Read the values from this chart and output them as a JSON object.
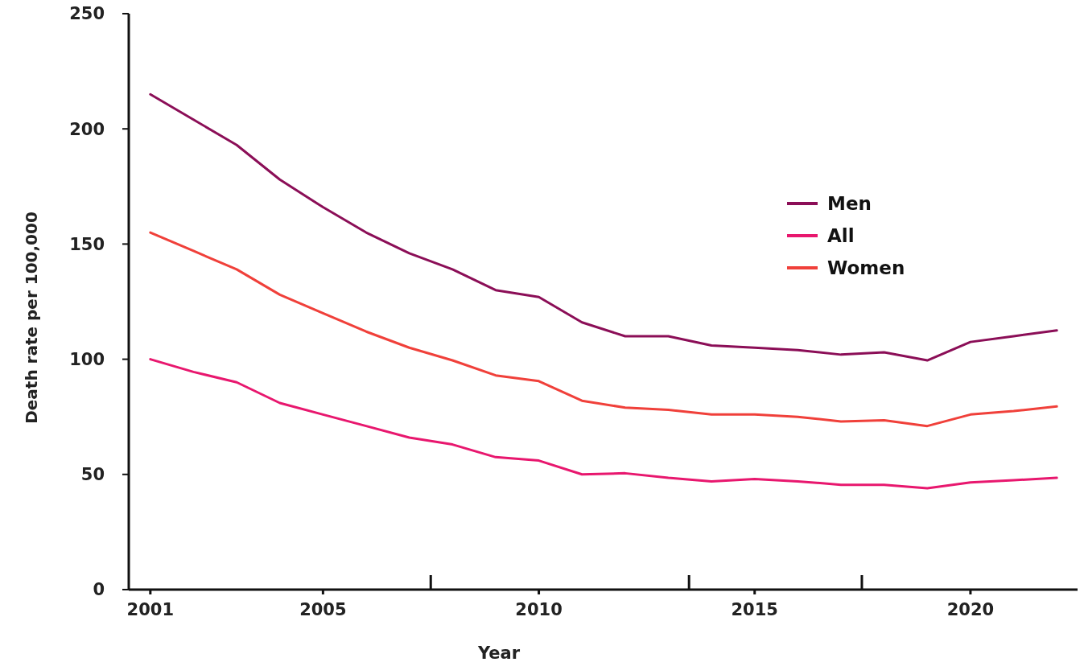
{
  "chart_data": {
    "type": "line",
    "xlabel": "Year",
    "ylabel": "Death rate per 100,000",
    "x": [
      2001,
      2002,
      2003,
      2004,
      2005,
      2006,
      2007,
      2008,
      2009,
      2010,
      2011,
      2012,
      2013,
      2014,
      2015,
      2016,
      2017,
      2018,
      2019,
      2020,
      2021,
      2022
    ],
    "series": [
      {
        "name": "Men",
        "color": "#8b0e57",
        "values": [
          215,
          204,
          193,
          178,
          166,
          155,
          146,
          139,
          130,
          127,
          116,
          110,
          110,
          106,
          105,
          104,
          102,
          103,
          99.5,
          107.5,
          110,
          112.5
        ]
      },
      {
        "name": "All",
        "color": "#e8176e",
        "values": [
          100,
          94.5,
          90,
          81,
          76,
          71,
          66,
          63,
          57.5,
          56,
          50,
          50.5,
          48.5,
          47,
          48,
          47,
          45.5,
          45.5,
          44,
          46.5,
          47.5,
          48.5
        ]
      },
      {
        "name": "Women",
        "color": "#f0403a",
        "values": [
          155,
          147,
          139,
          128,
          120,
          112,
          105,
          99.5,
          93,
          90.5,
          82,
          79,
          78,
          76,
          76,
          75,
          73,
          73.5,
          71,
          76,
          77.5,
          79.5
        ]
      }
    ],
    "xlim": [
      2000.5,
      2022.5
    ],
    "xticks": [
      2001,
      2005,
      2010,
      2015,
      2020
    ],
    "ylim": [
      0,
      250
    ],
    "yticks": [
      0,
      50,
      100,
      150,
      200,
      250
    ],
    "grid": false,
    "legend": "right",
    "marker": "none",
    "line_style": "solid"
  }
}
